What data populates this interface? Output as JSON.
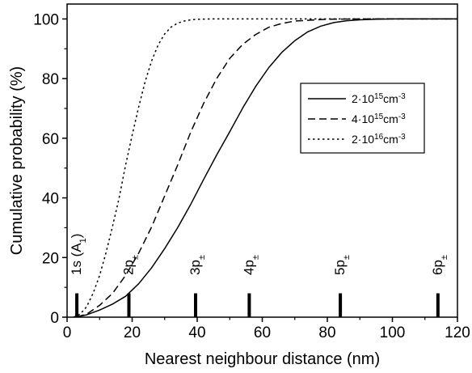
{
  "chart_data": {
    "type": "line",
    "xlabel": "Nearest neighbour distance (nm)",
    "ylabel": "Cumulative probability (%)",
    "xlim": [
      0,
      120
    ],
    "ylim": [
      0,
      105
    ],
    "xticks": [
      0,
      20,
      40,
      60,
      80,
      100,
      120
    ],
    "yticks": [
      0,
      20,
      40,
      60,
      80,
      100
    ],
    "grid": false,
    "legend_position": "right",
    "series": [
      {
        "name": "2·10^15 cm^-3",
        "name_parts": {
          "mant": "2·10",
          "exp": "15",
          "unit": "cm",
          "unitexp": "-3"
        },
        "style": "solid",
        "x": [
          3,
          6,
          10,
          14,
          18,
          22,
          26,
          30,
          34,
          38,
          42,
          46,
          50,
          54,
          58,
          62,
          66,
          70,
          74,
          78,
          82,
          86,
          90,
          95,
          100,
          110,
          120
        ],
        "y": [
          0.1,
          0.8,
          2.4,
          4.4,
          7.0,
          11.2,
          16.6,
          23.0,
          30.0,
          37.8,
          46.2,
          54.4,
          62.2,
          70.2,
          77.4,
          83.7,
          88.8,
          92.7,
          95.7,
          97.6,
          98.8,
          99.4,
          99.7,
          99.9,
          100,
          100,
          100
        ]
      },
      {
        "name": "4·10^15 cm^-3",
        "name_parts": {
          "mant": "4·10",
          "exp": "15",
          "unit": "cm",
          "unitexp": "-3"
        },
        "style": "dashed",
        "x": [
          3,
          6,
          10,
          14,
          18,
          22,
          26,
          30,
          34,
          38,
          42,
          46,
          50,
          54,
          58,
          62,
          66,
          70,
          80,
          90,
          120
        ],
        "y": [
          0.1,
          1.0,
          4.0,
          8.0,
          14.0,
          21.5,
          30.3,
          40.7,
          51.0,
          62.0,
          71.7,
          80.0,
          86.8,
          91.5,
          94.8,
          97.2,
          98.5,
          99.3,
          99.9,
          100,
          100
        ]
      },
      {
        "name": "2·10^16 cm^-3",
        "name_parts": {
          "mant": "2·10",
          "exp": "16",
          "unit": "cm",
          "unitexp": "-3"
        },
        "style": "dotted",
        "x": [
          2,
          4,
          6,
          8,
          10,
          12,
          14,
          16,
          18,
          20,
          22,
          24,
          26,
          28,
          30,
          32,
          34,
          36,
          38,
          40,
          45,
          50,
          120
        ],
        "y": [
          0,
          1.0,
          3.5,
          8.0,
          14.0,
          21.8,
          30.5,
          40.0,
          51.0,
          61.0,
          70.5,
          79.0,
          86.0,
          91.3,
          95.0,
          97.3,
          98.6,
          99.3,
          99.7,
          99.9,
          100,
          100,
          100
        ]
      }
    ],
    "markers": [
      {
        "x": 3,
        "main": "1s (A",
        "sub": "1",
        "close": ")"
      },
      {
        "x": 19,
        "main": "2p",
        "sub": "±"
      },
      {
        "x": 39.5,
        "main": "3p",
        "sub": "±"
      },
      {
        "x": 56,
        "main": "4p",
        "sub": "±"
      },
      {
        "x": 84,
        "main": "5p",
        "sub": "±"
      },
      {
        "x": 114,
        "main": "6p",
        "sub": "±"
      }
    ],
    "marker_height": 8
  }
}
